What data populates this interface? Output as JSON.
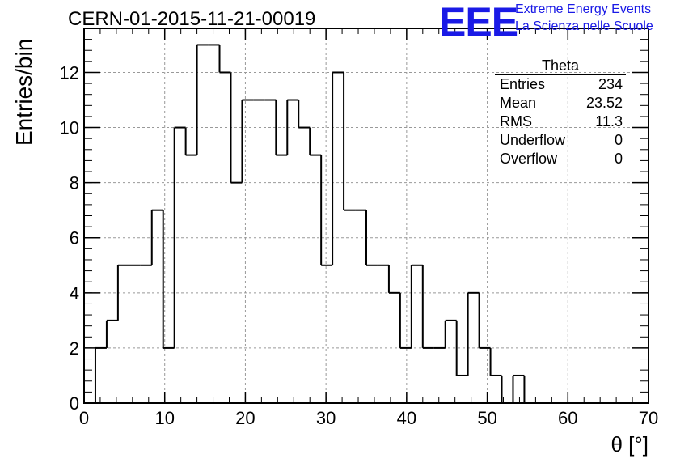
{
  "title": "CERN-01-2015-11-21-00019",
  "logo": {
    "mark": "EEE",
    "line1": "Extreme Energy Events",
    "line2": "La Scienza nelle Scuole",
    "color": "#1a1ae6"
  },
  "stats_box": {
    "title": "Theta",
    "rows": [
      {
        "label": "Entries",
        "value": "234"
      },
      {
        "label": "Mean",
        "value": "23.52"
      },
      {
        "label": "RMS",
        "value": "11.3"
      },
      {
        "label": "Underflow",
        "value": "0"
      },
      {
        "label": "Overflow",
        "value": "0"
      }
    ]
  },
  "chart_data": {
    "type": "bar",
    "style": "step-histogram",
    "xlabel": "θ [°]",
    "ylabel": "Entries/bin",
    "xlim": [
      0,
      70
    ],
    "ylim": [
      0,
      13.6
    ],
    "grid": true,
    "bin_width": 1.4,
    "x_ticks": [
      "0",
      "10",
      "20",
      "30",
      "40",
      "50",
      "60",
      "70"
    ],
    "y_ticks": [
      "0",
      "2",
      "4",
      "6",
      "8",
      "10",
      "12"
    ],
    "bin_edges_start": 0,
    "values": [
      0,
      2,
      3,
      5,
      5,
      5,
      7,
      2,
      10,
      9,
      13,
      13,
      12,
      8,
      11,
      11,
      11,
      9,
      11,
      10,
      9,
      5,
      12,
      7,
      7,
      5,
      5,
      4,
      2,
      5,
      2,
      2,
      3,
      1,
      4,
      2,
      1,
      0,
      1,
      0
    ]
  }
}
